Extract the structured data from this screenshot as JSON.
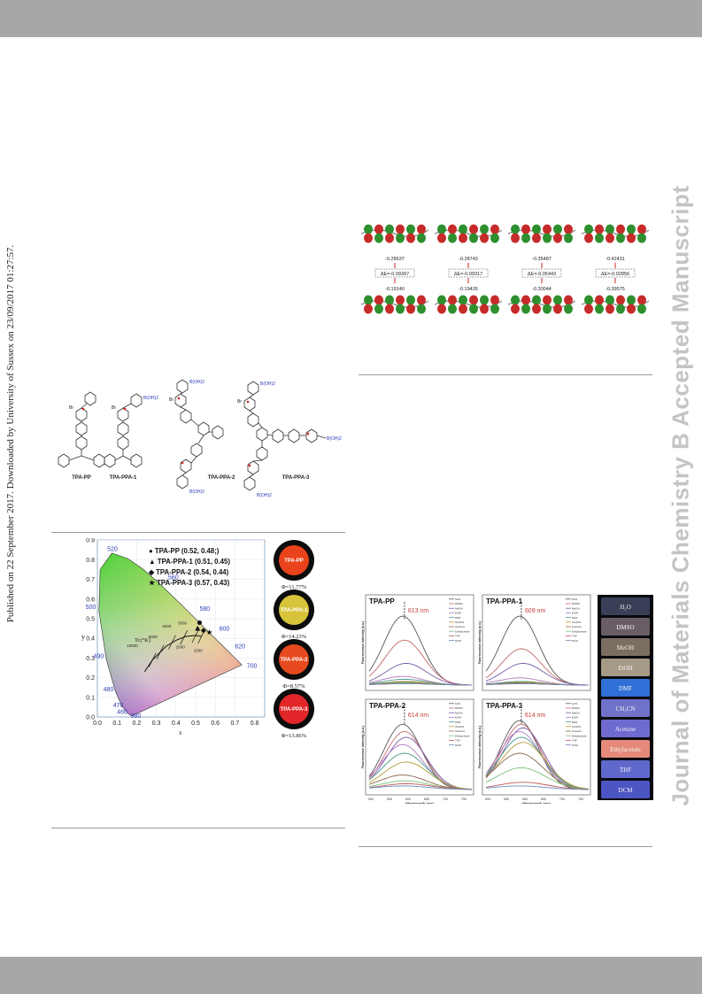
{
  "watermark_left": "Published on 22 September 2017. Downloaded by University of Sussex on 23/09/2017 01:27:57.",
  "watermark_right": "Journal of Materials Chemistry B Accepted Manuscript",
  "structures": {
    "compounds": [
      {
        "name": "TPA-PP",
        "counterion": "Br"
      },
      {
        "name": "TPA-PPA-1",
        "counterion": "Br",
        "group": "B(OH)2"
      },
      {
        "name": "TPA-PPA-2",
        "counterion": "Br",
        "group": "B(OH)2"
      },
      {
        "name": "TPA-PPA-3",
        "counterion": "Br",
        "group": "B(OH)2"
      }
    ]
  },
  "orbitals": {
    "lumo": [
      "-0.28537",
      "-0.28743",
      "-0.35487",
      "-0.42431"
    ],
    "gap": [
      "ΔE=-0.09397",
      "ΔE=-0.09317",
      "ΔE=-0.05443",
      "ΔE=-0.02856"
    ],
    "homo": [
      "-0.19140",
      "-0.19426",
      "-0.30044",
      "-0.39575"
    ]
  },
  "cie": {
    "legend": [
      {
        "marker": "●",
        "label": "TPA-PP (0.52, 0.48;)"
      },
      {
        "marker": "▲",
        "label": "TPA-PPA-1 (0.51, 0.45)"
      },
      {
        "marker": "◆",
        "label": "TPA-PPA-2 (0.54, 0.44)"
      },
      {
        "marker": "★",
        "label": "TPA-PPA-3 (0.57, 0.43)"
      }
    ],
    "x_ticks": [
      "0.0",
      "0.1",
      "0.2",
      "0.3",
      "0.4",
      "0.5",
      "0.6",
      "0.7",
      "0.8"
    ],
    "y_ticks": [
      "0.0",
      "0.1",
      "0.2",
      "0.3",
      "0.4",
      "0.5",
      "0.6",
      "0.7",
      "0.8",
      "0.9"
    ],
    "xlabel": "x",
    "ylabel": "y",
    "locus_labels": [
      "520",
      "560",
      "580",
      "600",
      "620",
      "700",
      "500",
      "490",
      "480",
      "470",
      "460",
      "380"
    ],
    "cct_label": "Tc(°K)",
    "cct_values": [
      "10000",
      "6000",
      "4000",
      "3000",
      "2000",
      "1500"
    ],
    "samples": [
      {
        "name": "TPA-PP",
        "qy": "Φ=11.77%",
        "color": "#e8431a"
      },
      {
        "name": "TPA-PPA-1",
        "qy": "Φ=14.23%",
        "color": "#d8c43a"
      },
      {
        "name": "TPA-PPA-2",
        "qy": "Φ=8.57%",
        "color": "#e64a1e"
      },
      {
        "name": "TPA-PPA-3",
        "qy": "Φ=13.86%",
        "color": "#e2262a"
      }
    ]
  },
  "fluorescence": {
    "panels": [
      {
        "name": "TPA-PP",
        "peak": "613 nm"
      },
      {
        "name": "TPA-PPA-1",
        "peak": "609 nm"
      },
      {
        "name": "TPA-PPA-2",
        "peak": "614 nm"
      },
      {
        "name": "TPA-PPA-3",
        "peak": "614 nm"
      }
    ],
    "ylabel": "Fluorescence intensity (a.u.)",
    "xlabel": "Wavelength (nm)",
    "x_ticks": [
      "500",
      "550",
      "600",
      "650",
      "700",
      "750"
    ],
    "solvents": [
      "H2O",
      "DMSO",
      "MeOH",
      "EtOH",
      "DMF",
      "CH3CN",
      "Acetone",
      "Ethylacetate",
      "THF",
      "DCM"
    ],
    "vial_labels": [
      "H₂O",
      "DMSO",
      "MeOH",
      "EtOH",
      "DMF",
      "CH₃CN",
      "Acetone",
      "Ethylacetate",
      "THF",
      "DCM"
    ],
    "vial_colors": [
      "#3a3f58",
      "#6a5e66",
      "#7a6f60",
      "#a59a86",
      "#2f6fd6",
      "#6f72c8",
      "#6e6ad0",
      "#e58a7a",
      "#5f69cc",
      "#4b55c4"
    ]
  }
}
